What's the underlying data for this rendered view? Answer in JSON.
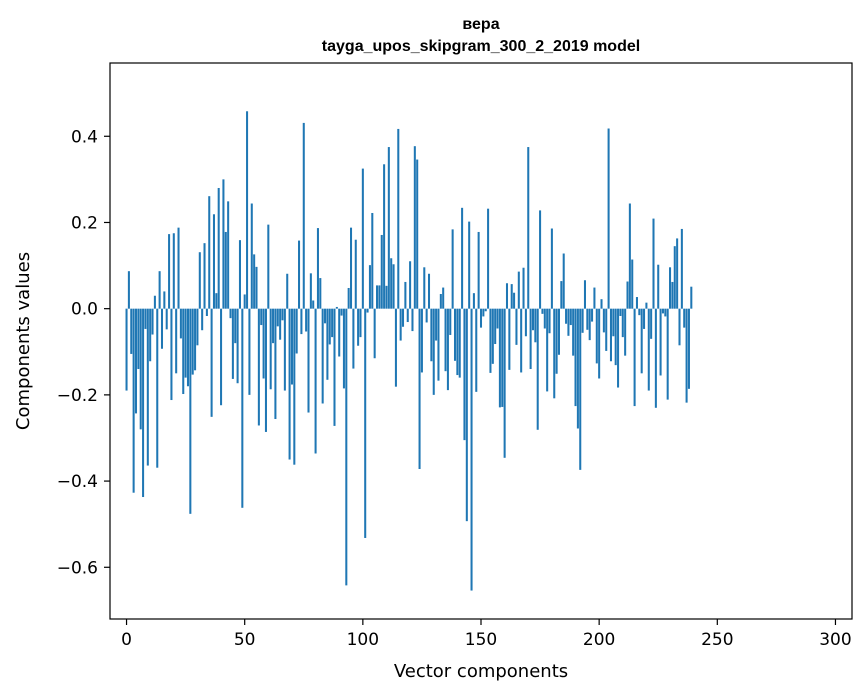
{
  "chart_data": {
    "type": "bar",
    "title": "вера",
    "subtitle": "tayga_upos_skipgram_300_2_2019 model",
    "xlabel": "Vector components",
    "ylabel": "Components values",
    "xlim": [
      -7,
      307
    ],
    "ylim": [
      -0.72,
      0.57
    ],
    "xticks": [
      0,
      50,
      100,
      150,
      200,
      250,
      300
    ],
    "yticks": [
      -0.6,
      -0.4,
      -0.2,
      0.0,
      0.2,
      0.4
    ],
    "ytick_labels": [
      "−0.6",
      "−0.4",
      "−0.2",
      "0.0",
      "0.2",
      "0.4"
    ],
    "bar_color": "#1f77b4",
    "values": [
      -0.19,
      0.087,
      -0.105,
      -0.427,
      -0.243,
      -0.14,
      -0.28,
      -0.437,
      -0.047,
      -0.364,
      -0.122,
      -0.06,
      0.03,
      -0.369,
      0.087,
      -0.093,
      0.04,
      -0.048,
      0.173,
      -0.212,
      0.175,
      -0.15,
      0.188,
      -0.069,
      -0.198,
      -0.16,
      -0.18,
      -0.476,
      -0.153,
      -0.143,
      -0.085,
      0.131,
      -0.05,
      0.152,
      -0.017,
      0.261,
      -0.251,
      0.219,
      0.036,
      0.28,
      -0.224,
      0.3,
      0.178,
      0.249,
      -0.022,
      -0.163,
      -0.08,
      -0.173,
      0.159,
      -0.462,
      0.033,
      0.458,
      -0.2,
      0.244,
      0.126,
      0.097,
      -0.271,
      -0.038,
      -0.162,
      -0.286,
      0.195,
      -0.187,
      -0.08,
      -0.256,
      -0.041,
      -0.072,
      -0.027,
      -0.19,
      0.081,
      -0.35,
      -0.176,
      -0.362,
      -0.104,
      0.158,
      -0.059,
      0.431,
      -0.053,
      -0.241,
      0.082,
      0.019,
      -0.336,
      0.187,
      0.071,
      -0.22,
      -0.034,
      -0.165,
      -0.083,
      -0.066,
      -0.272,
      0.004,
      -0.111,
      -0.016,
      -0.185,
      -0.642,
      0.048,
      0.188,
      -0.139,
      0.16,
      -0.086,
      -0.066,
      0.325,
      -0.532,
      -0.009,
      0.101,
      0.222,
      -0.115,
      0.054,
      0.054,
      0.171,
      0.335,
      0.053,
      0.375,
      0.117,
      0.103,
      -0.181,
      0.417,
      -0.074,
      -0.042,
      0.062,
      -0.031,
      0.11,
      -0.052,
      0.377,
      0.346,
      -0.372,
      -0.148,
      0.096,
      -0.032,
      0.081,
      -0.122,
      -0.2,
      -0.074,
      -0.167,
      0.034,
      0.049,
      -0.145,
      -0.189,
      -0.061,
      0.184,
      -0.121,
      -0.154,
      -0.16,
      0.234,
      -0.305,
      -0.493,
      0.202,
      -0.654,
      0.036,
      -0.193,
      0.178,
      -0.044,
      -0.018,
      -0.006,
      0.232,
      -0.149,
      -0.128,
      -0.082,
      -0.046,
      -0.229,
      -0.228,
      -0.346,
      0.059,
      -0.142,
      0.057,
      0.037,
      -0.084,
      0.086,
      -0.148,
      0.095,
      -0.064,
      0.375,
      -0.14,
      -0.05,
      -0.078,
      -0.281,
      0.228,
      -0.012,
      -0.046,
      -0.192,
      -0.057,
      0.186,
      -0.208,
      -0.151,
      -0.107,
      0.064,
      0.128,
      -0.035,
      -0.063,
      -0.038,
      -0.109,
      -0.226,
      -0.278,
      -0.374,
      -0.056,
      0.066,
      -0.049,
      -0.073,
      -0.03,
      0.049,
      -0.127,
      -0.162,
      0.022,
      -0.055,
      -0.098,
      0.418,
      -0.122,
      -0.064,
      -0.131,
      -0.183,
      -0.017,
      -0.066,
      -0.109,
      0.063,
      0.244,
      0.114,
      -0.226,
      0.027,
      -0.015,
      -0.15,
      -0.047,
      0.014,
      -0.19,
      -0.07,
      0.209,
      -0.23,
      0.102,
      -0.155,
      -0.011,
      -0.018,
      -0.211,
      0.096,
      0.062,
      0.145,
      0.163,
      -0.085,
      0.185,
      -0.044,
      -0.218,
      -0.186,
      0.051
    ]
  }
}
